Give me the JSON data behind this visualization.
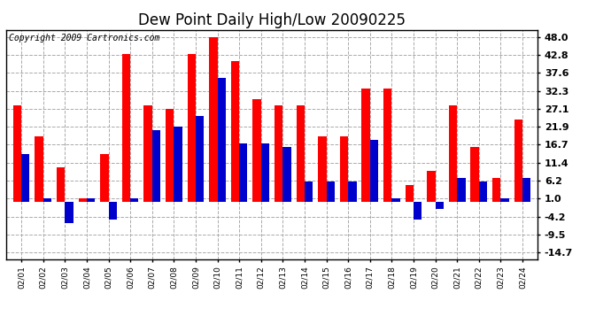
{
  "title": "Dew Point Daily High/Low 20090225",
  "copyright": "Copyright 2009 Cartronics.com",
  "dates": [
    "02/01",
    "02/02",
    "02/03",
    "02/04",
    "02/05",
    "02/06",
    "02/07",
    "02/08",
    "02/09",
    "02/10",
    "02/11",
    "02/12",
    "02/13",
    "02/14",
    "02/15",
    "02/16",
    "02/17",
    "02/18",
    "02/19",
    "02/20",
    "02/21",
    "02/22",
    "02/23",
    "02/24"
  ],
  "highs": [
    28.0,
    19.0,
    10.0,
    1.0,
    14.0,
    43.0,
    28.0,
    27.0,
    43.0,
    48.0,
    41.0,
    30.0,
    28.0,
    28.0,
    19.0,
    19.0,
    33.0,
    33.0,
    5.0,
    9.0,
    28.0,
    16.0,
    7.0,
    24.0
  ],
  "lows": [
    14.0,
    1.0,
    -6.0,
    1.0,
    -5.0,
    1.0,
    21.0,
    22.0,
    25.0,
    36.0,
    17.0,
    17.0,
    16.0,
    6.0,
    6.0,
    6.0,
    18.0,
    1.0,
    -5.0,
    -2.0,
    7.0,
    6.0,
    1.0,
    7.0
  ],
  "high_color": "#ff0000",
  "low_color": "#0000cc",
  "bg_color": "#ffffff",
  "grid_color": "#aaaaaa",
  "yticks": [
    48.0,
    42.8,
    37.6,
    32.3,
    27.1,
    21.9,
    16.7,
    11.4,
    6.2,
    1.0,
    -4.2,
    -9.5,
    -14.7
  ],
  "ylim": [
    -16.5,
    50.0
  ],
  "bar_width": 0.38,
  "title_fontsize": 12,
  "copyright_fontsize": 7,
  "tick_fontsize": 8,
  "xtick_fontsize": 6.5
}
